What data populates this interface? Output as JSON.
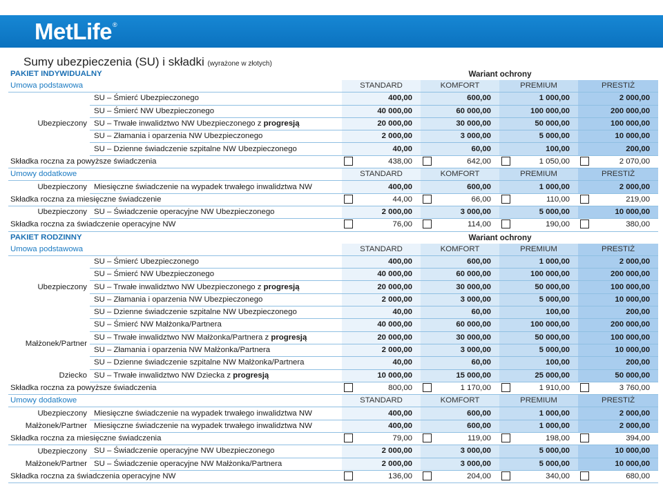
{
  "header": {
    "logo": "MetLife"
  },
  "title": {
    "main": "Sumy ubezpieczenia (SU) i składki",
    "sub": "(wyrażone w złotych)"
  },
  "columns": [
    "STANDARD",
    "KOMFORT",
    "PREMIUM",
    "PRESTIŻ"
  ],
  "indywidualny": {
    "heading": "PAKIET INDYWIDUALNY",
    "variant": "Wariant ochrony",
    "umowa": "Umowa podstawowa",
    "group": "Ubezpieczony",
    "rows": [
      {
        "d": "SU – Śmierć Ubezpieczonego",
        "v": [
          "400,00",
          "600,00",
          "1 000,00",
          "2 000,00"
        ]
      },
      {
        "d": "SU – Śmierć NW Ubezpieczonego",
        "v": [
          "40 000,00",
          "60 000,00",
          "100 000,00",
          "200 000,00"
        ]
      },
      {
        "d": "SU – Trwałe inwalidztwo NW Ubezpieczonego z ",
        "b": "progresją",
        "v": [
          "20 000,00",
          "30 000,00",
          "50 000,00",
          "100 000,00"
        ]
      },
      {
        "d": "SU – Złamania i oparzenia NW Ubezpieczonego",
        "v": [
          "2 000,00",
          "3 000,00",
          "5 000,00",
          "10 000,00"
        ]
      },
      {
        "d": "SU – Dzienne świadczenie szpitalne NW Ubezpieczonego",
        "v": [
          "40,00",
          "60,00",
          "100,00",
          "200,00"
        ]
      }
    ],
    "premium1": {
      "label": "Składka roczna za powyższe świadczenia",
      "v": [
        "438,00",
        "642,00",
        "1 050,00",
        "2 070,00"
      ]
    },
    "dodatkowe": "Umowy dodatkowe",
    "add1": {
      "lbl": "Ubezpieczony",
      "d": "Miesięczne świadczenie na wypadek trwałego inwalidztwa NW",
      "v": [
        "400,00",
        "600,00",
        "1 000,00",
        "2 000,00"
      ]
    },
    "premium2": {
      "label": "Składka roczna za miesięczne świadczenie",
      "v": [
        "44,00",
        "66,00",
        "110,00",
        "219,00"
      ]
    },
    "add2": {
      "lbl": "Ubezpieczony",
      "d": "SU – Świadczenie operacyjne NW Ubezpieczonego",
      "v": [
        "2 000,00",
        "3 000,00",
        "5 000,00",
        "10 000,00"
      ]
    },
    "premium3": {
      "label": "Składka roczna za świadczenie operacyjne NW",
      "v": [
        "76,00",
        "114,00",
        "190,00",
        "380,00"
      ]
    }
  },
  "rodzinny": {
    "heading": "PAKIET RODZINNY",
    "variant": "Wariant ochrony",
    "umowa": "Umowa podstawowa",
    "group1": "Ubezpieczony",
    "rows1": [
      {
        "d": "SU – Śmierć Ubezpieczonego",
        "v": [
          "400,00",
          "600,00",
          "1 000,00",
          "2 000,00"
        ]
      },
      {
        "d": "SU – Śmierć NW Ubezpieczonego",
        "v": [
          "40 000,00",
          "60 000,00",
          "100 000,00",
          "200 000,00"
        ]
      },
      {
        "d": "SU – Trwałe inwalidztwo NW Ubezpieczonego z ",
        "b": "progresją",
        "v": [
          "20 000,00",
          "30 000,00",
          "50 000,00",
          "100 000,00"
        ]
      },
      {
        "d": "SU – Złamania i oparzenia NW Ubezpieczonego",
        "v": [
          "2 000,00",
          "3 000,00",
          "5 000,00",
          "10 000,00"
        ]
      },
      {
        "d": "SU – Dzienne świadczenie szpitalne NW Ubezpieczonego",
        "v": [
          "40,00",
          "60,00",
          "100,00",
          "200,00"
        ]
      }
    ],
    "group2": "Małżonek/Partner",
    "rows2": [
      {
        "d": "SU – Śmierć NW Małżonka/Partnera",
        "v": [
          "40 000,00",
          "60 000,00",
          "100 000,00",
          "200 000,00"
        ]
      },
      {
        "d": "SU – Trwałe inwalidztwo NW Małżonka/Partnera z ",
        "b": "progresją",
        "v": [
          "20 000,00",
          "30 000,00",
          "50 000,00",
          "100 000,00"
        ]
      },
      {
        "d": "SU – Złamania i oparzenia NW Małżonka/Partnera",
        "v": [
          "2 000,00",
          "3 000,00",
          "5 000,00",
          "10 000,00"
        ]
      },
      {
        "d": "SU – Dzienne świadczenie szpitalne NW Małżonka/Partnera",
        "v": [
          "40,00",
          "60,00",
          "100,00",
          "200,00"
        ]
      }
    ],
    "group3": "Dziecko",
    "row3": {
      "d": "SU – Trwałe inwalidztwo NW Dziecka z ",
      "b": "progresją",
      "v": [
        "10 000,00",
        "15 000,00",
        "25 000,00",
        "50 000,00"
      ]
    },
    "premium1": {
      "label": "Składka roczna za powyższe świadczenia",
      "v": [
        "800,00",
        "1 170,00",
        "1 910,00",
        "3 760,00"
      ]
    },
    "dodatkowe": "Umowy dodatkowe",
    "add1": {
      "lbl": "Ubezpieczony",
      "d": "Miesięczne świadczenie na wypadek trwałego inwalidztwa NW",
      "v": [
        "400,00",
        "600,00",
        "1 000,00",
        "2 000,00"
      ]
    },
    "add2": {
      "lbl": "Małżonek/Partner",
      "d": "Miesięczne świadczenie na wypadek trwałego inwalidztwa NW",
      "v": [
        "400,00",
        "600,00",
        "1 000,00",
        "2 000,00"
      ]
    },
    "premium2": {
      "label": "Składka roczna za miesięczne świadczenia",
      "v": [
        "79,00",
        "119,00",
        "198,00",
        "394,00"
      ]
    },
    "add3": {
      "lbl": "Ubezpieczony",
      "d": "SU – Świadczenie operacyjne NW Ubezpieczonego",
      "v": [
        "2 000,00",
        "3 000,00",
        "5 000,00",
        "10 000,00"
      ]
    },
    "add4": {
      "lbl": "Małżonek/Partner",
      "d": "SU – Świadczenie operacyjne NW Małżonka/Partnera",
      "v": [
        "2 000,00",
        "3 000,00",
        "5 000,00",
        "10 000,00"
      ]
    },
    "premium3": {
      "label": "Składka roczna za świadczenia operacyjne NW",
      "v": [
        "136,00",
        "204,00",
        "340,00",
        "680,00"
      ]
    }
  }
}
